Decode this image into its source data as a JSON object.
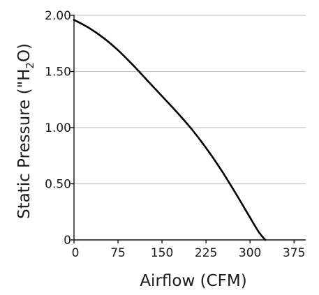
{
  "chart_data": {
    "type": "line",
    "title": "",
    "xlabel": "Airflow (CFM)",
    "ylabel": "Static Pressure (\"H",
    "ylabel_subscript": "2",
    "ylabel_suffix": "O)",
    "xlim": [
      0,
      395
    ],
    "ylim": [
      0,
      2.0
    ],
    "x_ticks": [
      0,
      75,
      150,
      225,
      300,
      375
    ],
    "x_tick_labels": [
      "0",
      "75",
      "150",
      "225",
      "300",
      "375"
    ],
    "y_ticks": [
      0,
      0.5,
      1.0,
      1.5,
      2.0
    ],
    "y_tick_labels": [
      "0",
      "0.50",
      "1.00",
      "1.50",
      "2.00"
    ],
    "grid": "horizontal",
    "series": [
      {
        "x": [
          0,
          25,
          50,
          75,
          100,
          125,
          150,
          175,
          200,
          225,
          250,
          275,
          300,
          315,
          326
        ],
        "y": [
          1.96,
          1.89,
          1.8,
          1.69,
          1.56,
          1.42,
          1.28,
          1.14,
          0.99,
          0.82,
          0.63,
          0.42,
          0.2,
          0.07,
          0.0
        ],
        "color": "#000000"
      }
    ]
  }
}
